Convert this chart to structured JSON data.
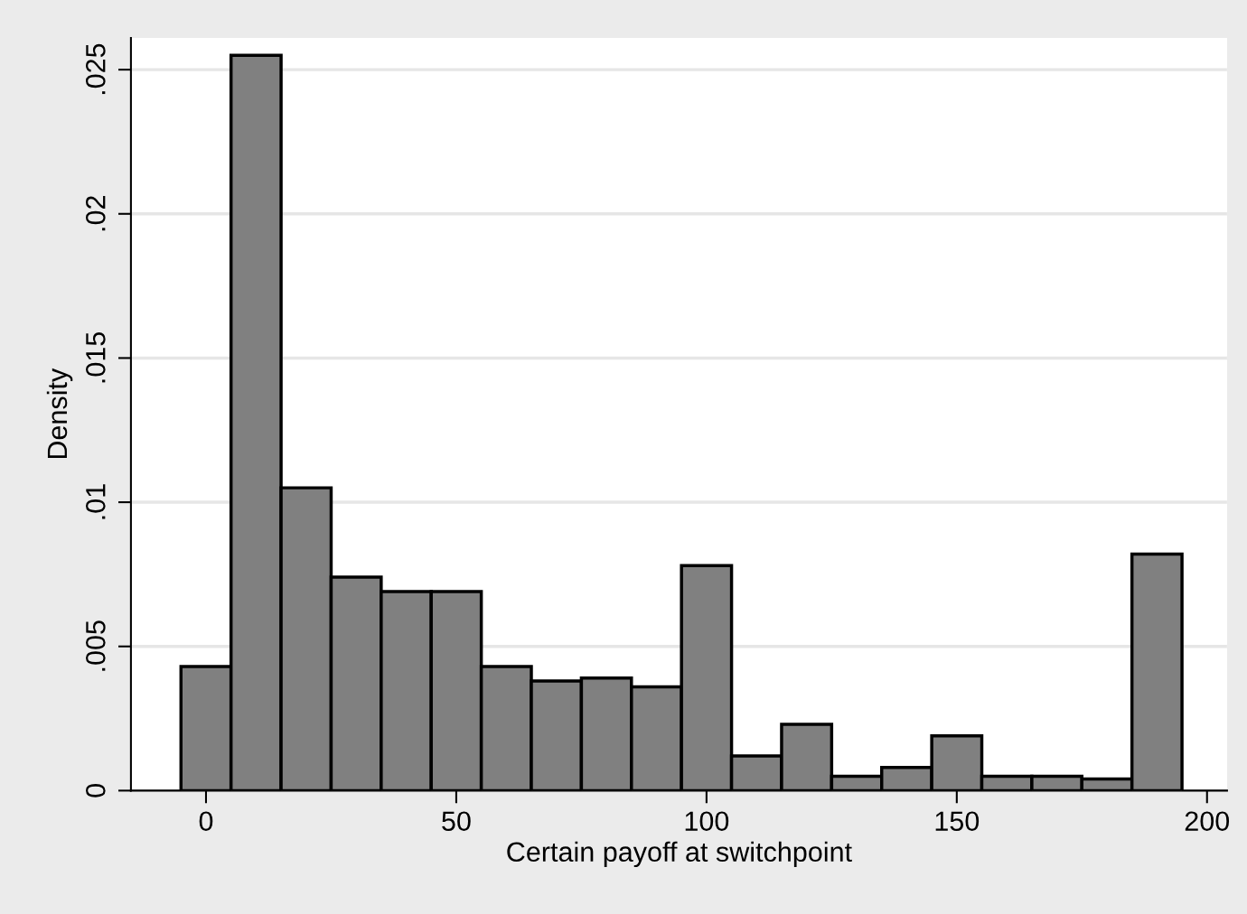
{
  "chart_data": {
    "type": "histogram",
    "xlabel": "Certain payoff at switchpoint",
    "ylabel": "Density",
    "bins": [
      -5,
      5,
      15,
      25,
      35,
      45,
      55,
      65,
      75,
      85,
      95,
      105,
      115,
      125,
      135,
      145,
      155,
      165,
      175,
      185,
      195
    ],
    "values": [
      0.0043,
      0.0255,
      0.0105,
      0.0074,
      0.0069,
      0.0069,
      0.0043,
      0.0038,
      0.0039,
      0.0036,
      0.0078,
      0.0012,
      0.0023,
      0.0005,
      0.0008,
      0.0019,
      0.0005,
      0.0005,
      0.0004,
      0.0082
    ],
    "color": "#808080",
    "xlim": [
      -15,
      204
    ],
    "xticks": [
      0,
      50,
      100,
      150,
      200
    ],
    "ylim": [
      0,
      0.0261
    ],
    "yticks": [
      0,
      {
        "value": 0.005,
        "label": ".005"
      },
      {
        "value": 0.01,
        "label": ".01"
      },
      {
        "value": 0.015,
        "label": ".015"
      },
      {
        "value": 0.02,
        "label": ".02"
      },
      {
        "value": 0.025,
        "label": ".025"
      }
    ],
    "grid": "y"
  }
}
